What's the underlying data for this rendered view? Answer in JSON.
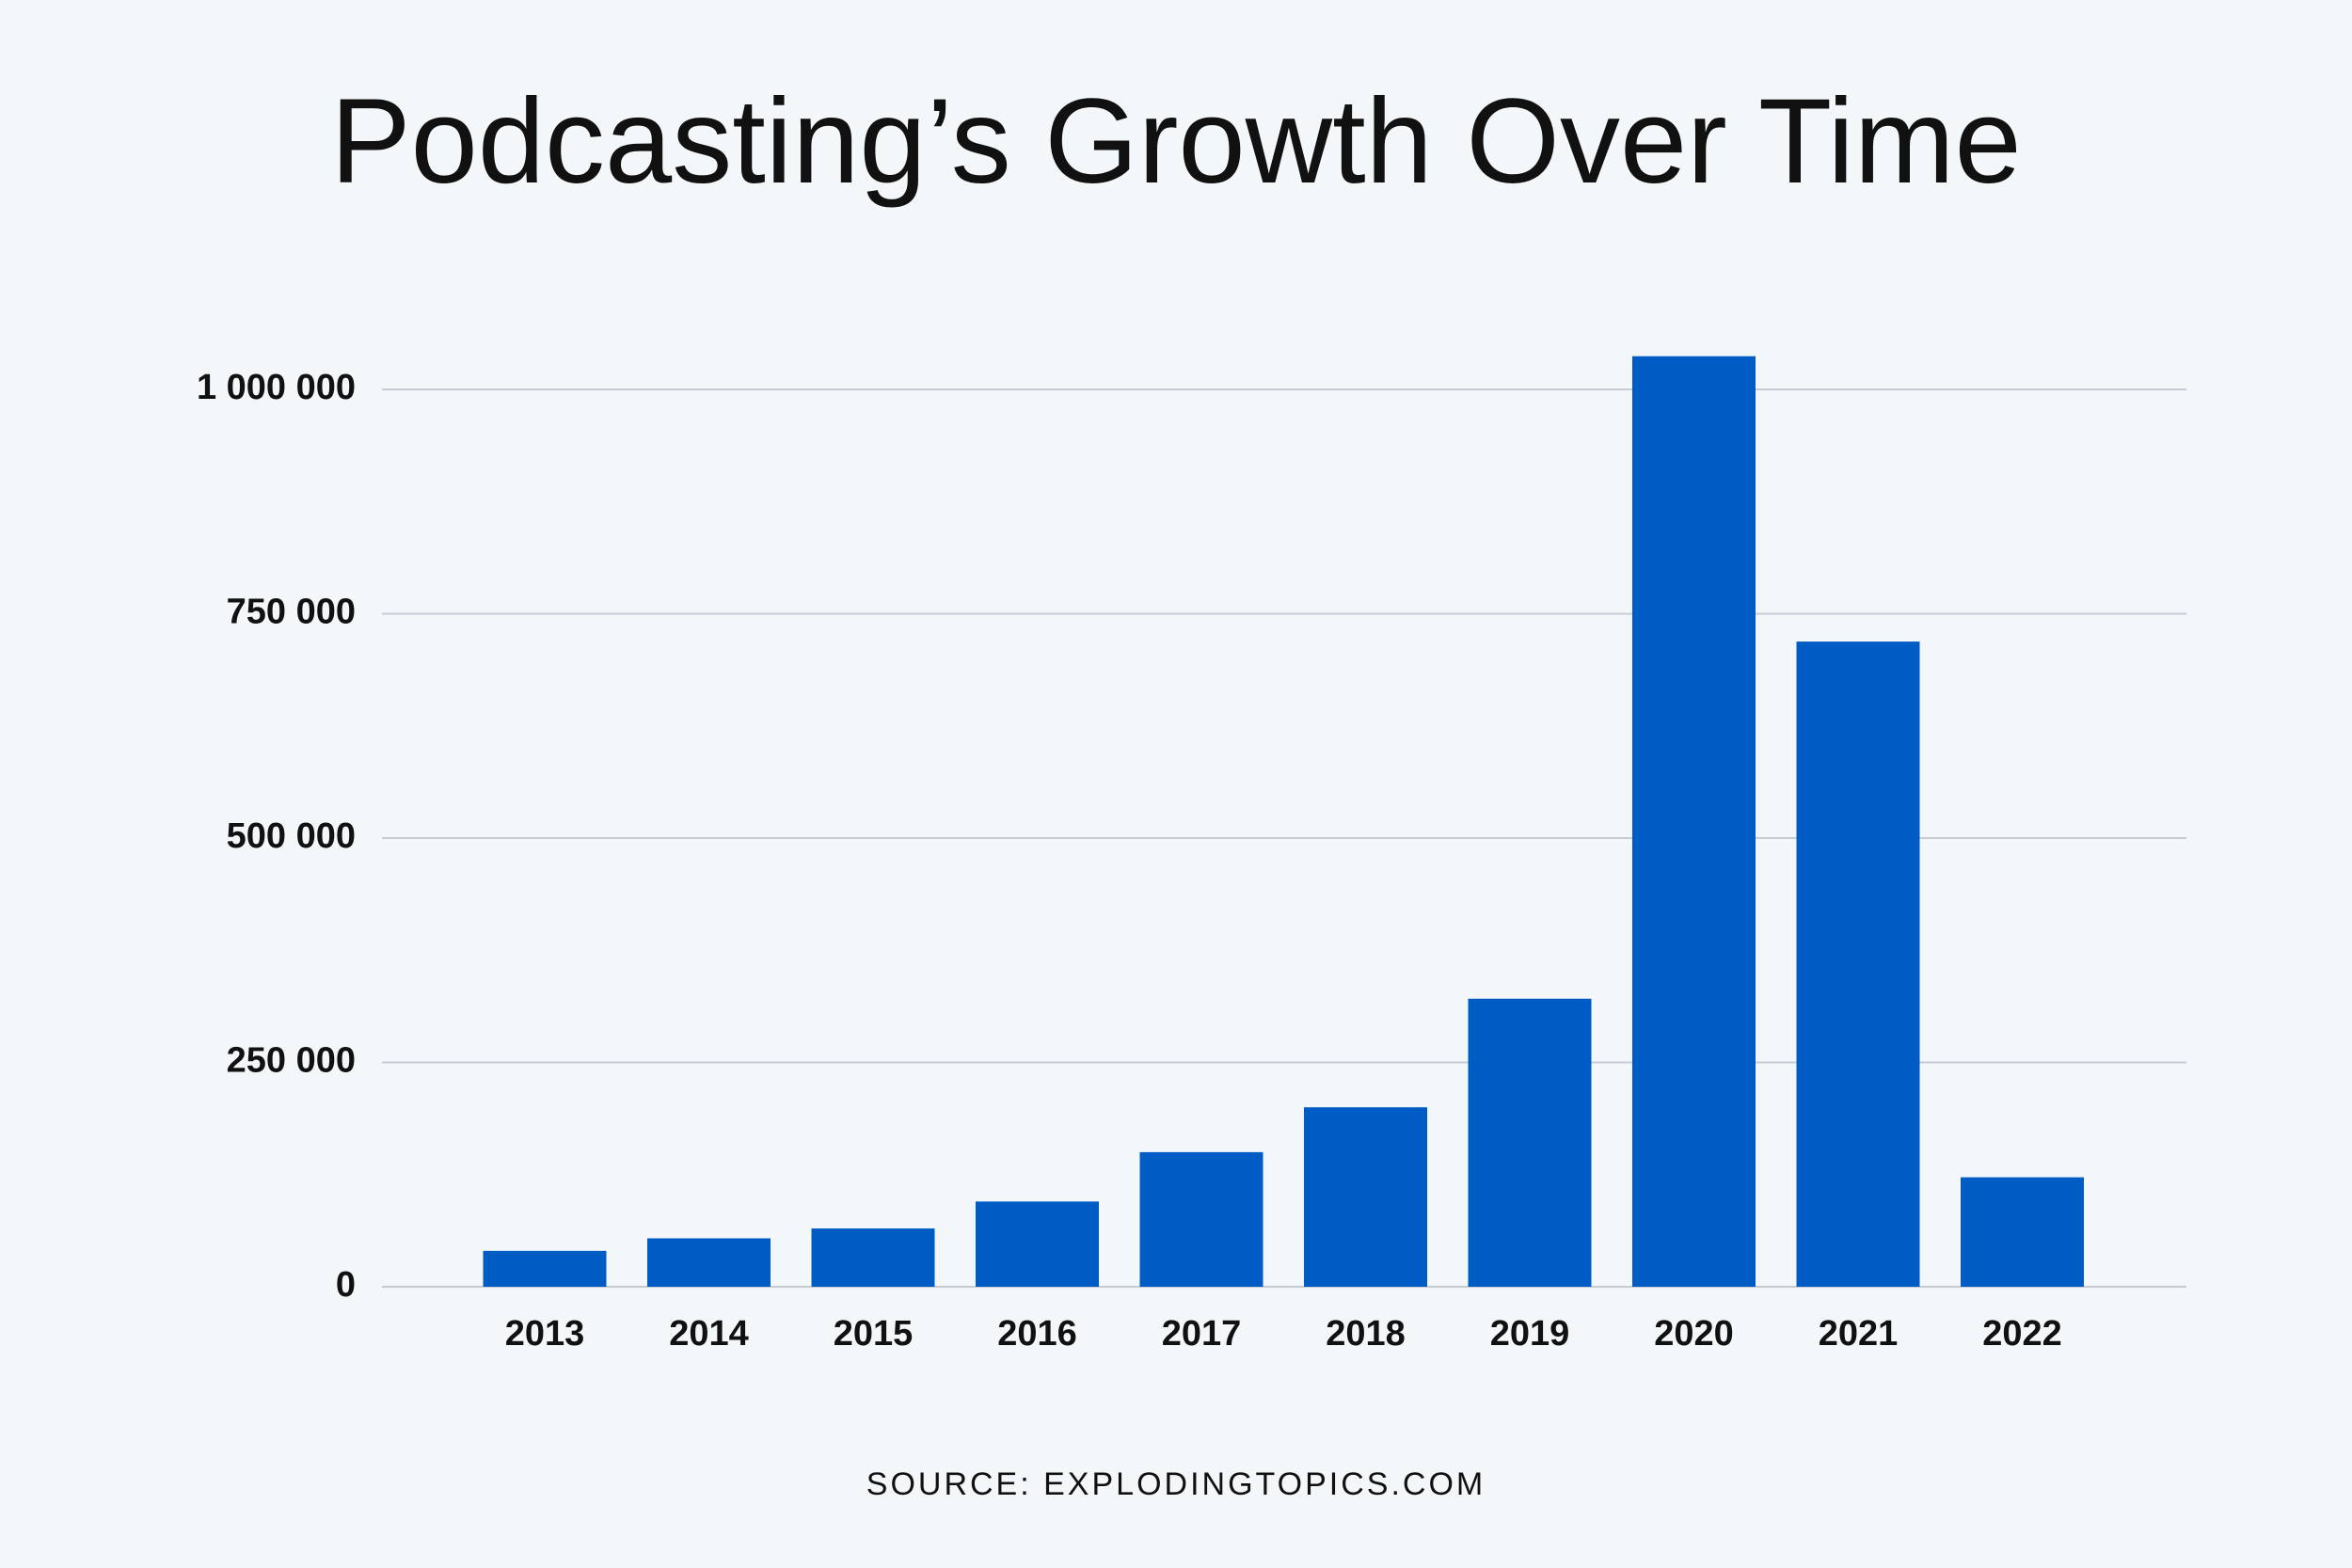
{
  "chart_data": {
    "type": "bar",
    "title": "Podcasting’s Growth Over Time",
    "categories": [
      "2013",
      "2014",
      "2015",
      "2016",
      "2017",
      "2018",
      "2019",
      "2020",
      "2021",
      "2022"
    ],
    "values": [
      40000,
      54000,
      65000,
      95000,
      150000,
      200000,
      321000,
      1037000,
      719000,
      122000
    ],
    "color": "#005cc5",
    "ylim": [
      0,
      1000000
    ],
    "yticks": [
      0,
      {
        "value": 250000,
        "label": "250 000"
      },
      {
        "value": 500000,
        "label": "500 000"
      },
      {
        "value": 750000,
        "label": "750 000"
      },
      {
        "value": 1000000,
        "label": "1 000 000"
      }
    ],
    "grid": true,
    "source": "SOURCE: EXPLODINGTOPICS.COM"
  }
}
